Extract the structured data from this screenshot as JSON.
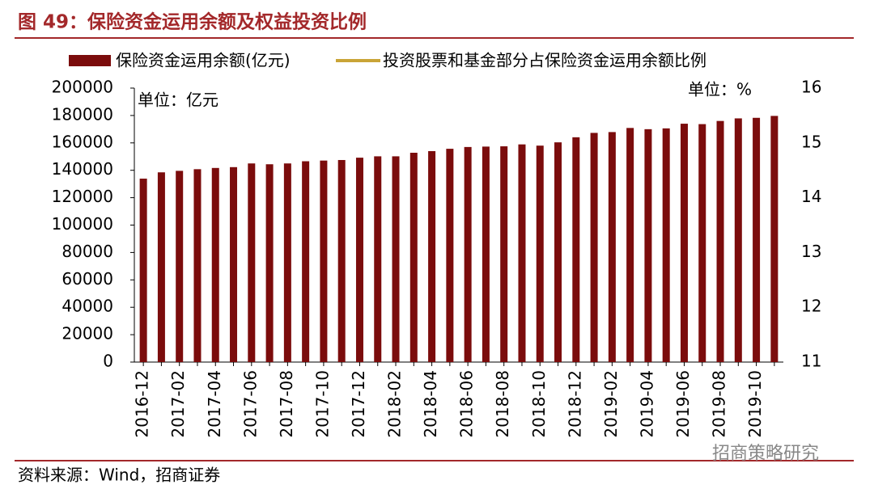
{
  "chart_data": {
    "type": "bar",
    "title": "图 49：保险资金运用余额及权益投资比例",
    "unit_left": "单位：亿元",
    "unit_right": "单位：%",
    "source": "资料来源：Wind，招商证券",
    "watermark": "招商策略研究",
    "categories": [
      "2016-12",
      null,
      "2017-02",
      null,
      "2017-04",
      null,
      "2017-06",
      null,
      "2017-08",
      null,
      "2017-10",
      null,
      "2017-12",
      null,
      "2018-02",
      null,
      "2018-04",
      null,
      "2018-06",
      null,
      "2018-08",
      null,
      "2018-10",
      null,
      "2018-12",
      null,
      "2019-02",
      null,
      "2019-04",
      null,
      "2019-06",
      null,
      "2019-08",
      null,
      "2019-10",
      null
    ],
    "series": [
      {
        "name": "保险资金运用余额(亿元)",
        "color": "#7b0c0c",
        "values": [
          133900,
          138500,
          139600,
          140800,
          141700,
          142300,
          145000,
          144400,
          145000,
          146600,
          147100,
          147500,
          149200,
          150200,
          150200,
          152800,
          154000,
          155700,
          157000,
          157300,
          157500,
          158900,
          158000,
          160400,
          164100,
          167300,
          167900,
          170900,
          170000,
          170600,
          174000,
          173700,
          176000,
          177900,
          178300,
          179700
        ]
      },
      {
        "name": "投资股票和基金部分占保险资金运用余额比例",
        "color": "#c9a437",
        "axis": "y2",
        "values": [
          null,
          null,
          null,
          null,
          null,
          null,
          null,
          null,
          null,
          null,
          null,
          null,
          null,
          null,
          null,
          null,
          null,
          null,
          null,
          null,
          null,
          null,
          null,
          null,
          null,
          null,
          null,
          null,
          null,
          null,
          null,
          null,
          null,
          null,
          null,
          null
        ]
      }
    ],
    "ylim": [
      0,
      200000
    ],
    "yticks": [
      0,
      20000,
      40000,
      60000,
      80000,
      100000,
      120000,
      140000,
      160000,
      180000,
      200000
    ],
    "y2lim": [
      11,
      16
    ],
    "y2ticks": [
      11,
      12,
      13,
      14,
      15,
      16
    ]
  }
}
